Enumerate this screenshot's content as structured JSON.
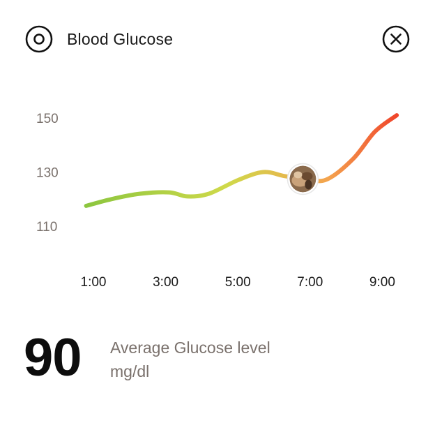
{
  "header": {
    "title": "Blood Glucose",
    "left_icon": "target-icon",
    "right_icon": "close-icon"
  },
  "chart_data": {
    "type": "line",
    "x_ticks": [
      "1:00",
      "3:00",
      "5:00",
      "7:00",
      "9:00"
    ],
    "y_ticks": [
      "150",
      "130",
      "110"
    ],
    "ylim": [
      100,
      155
    ],
    "series": [
      {
        "x": [
          0.8,
          1.5,
          2.3,
          3.1,
          3.6,
          4.2,
          5.0,
          5.7,
          6.3,
          7.0,
          7.5,
          8.2,
          8.8,
          9.4
        ],
        "y": [
          117.5,
          120,
          122,
          122.5,
          121,
          122,
          127,
          130,
          128.5,
          127,
          127.5,
          135,
          145,
          151
        ]
      }
    ],
    "annotation_x": 6.8,
    "annotation_icon": "meal-photo-icon",
    "gradient_colors": [
      "#8cc63f",
      "#cfd94a",
      "#f4a34e",
      "#f0452b"
    ]
  },
  "summary": {
    "value": "90",
    "label": "Average Glucose level",
    "unit": "mg/dl"
  }
}
